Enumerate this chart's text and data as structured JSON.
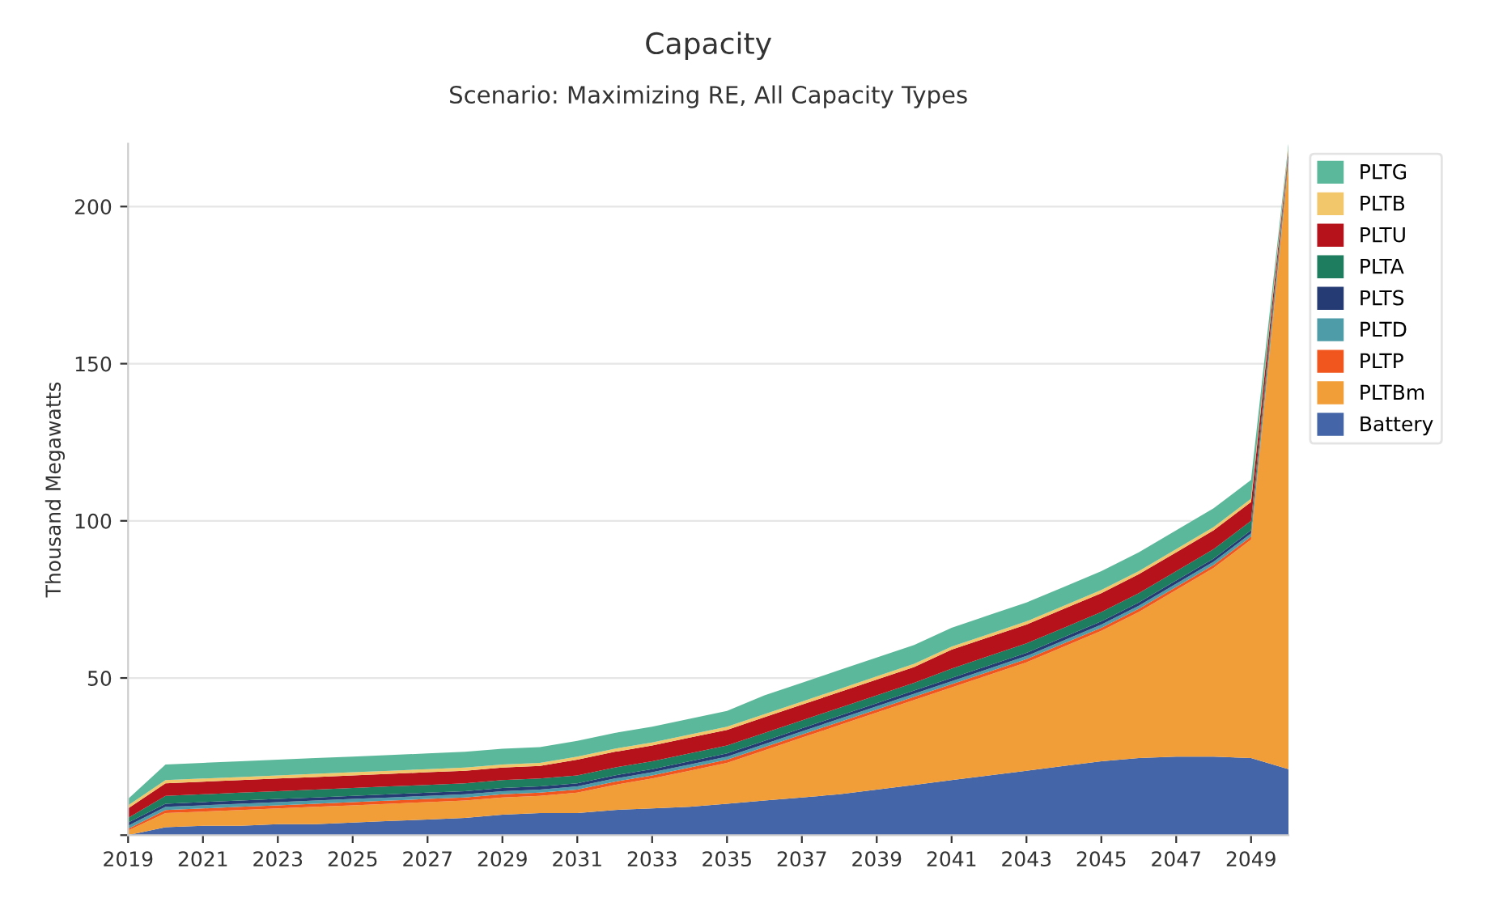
{
  "chart_data": {
    "type": "area",
    "stacked": true,
    "title": "Capacity",
    "subtitle": "Scenario: Maximizing RE, All Capacity Types",
    "ylabel": "Thousand Megawatts",
    "x": [
      2019,
      2020,
      2021,
      2022,
      2023,
      2024,
      2025,
      2026,
      2027,
      2028,
      2029,
      2030,
      2031,
      2032,
      2033,
      2034,
      2035,
      2036,
      2037,
      2038,
      2039,
      2040,
      2041,
      2042,
      2043,
      2044,
      2045,
      2046,
      2047,
      2048,
      2049,
      2050
    ],
    "xlim": [
      2019,
      2050
    ],
    "xticks": [
      2019,
      2021,
      2023,
      2025,
      2027,
      2029,
      2031,
      2033,
      2035,
      2037,
      2039,
      2041,
      2043,
      2045,
      2047,
      2049
    ],
    "ylim": [
      0,
      220
    ],
    "yticks": [
      {
        "value": 0,
        "label": null
      },
      50,
      100,
      150,
      200
    ],
    "grid": "y",
    "legend": "top right",
    "series": [
      {
        "name": "Battery",
        "color": "#4466a8",
        "values": [
          0,
          2.5,
          3,
          3,
          3.5,
          3.5,
          4,
          4.5,
          5,
          5.5,
          6.5,
          7,
          7,
          8,
          8.5,
          9,
          10,
          11,
          12,
          13,
          14.5,
          16,
          17.5,
          19,
          20.5,
          22,
          23.5,
          24.5,
          25,
          25,
          24.5,
          21
        ]
      },
      {
        "name": "PLTBm",
        "color": "#f29e38",
        "values": [
          1.5,
          4.5,
          4.5,
          5,
          5,
          5.5,
          5.5,
          5.5,
          5.5,
          5.5,
          5.5,
          5.5,
          6.5,
          8,
          9.5,
          11.5,
          13,
          16,
          19,
          22,
          24.5,
          27,
          29.5,
          32,
          34.5,
          38,
          41.5,
          46.5,
          53,
          60,
          69.5,
          193
        ]
      },
      {
        "name": "PLTP",
        "color": "#f0561d",
        "values": [
          0.5,
          1,
          1,
          1,
          1,
          1,
          1,
          1,
          1,
          1,
          1,
          1,
          1,
          1,
          1,
          1,
          1,
          1,
          1,
          1,
          1,
          1,
          1,
          1,
          1,
          1,
          1,
          1,
          1,
          1,
          1,
          0.5
        ]
      },
      {
        "name": "PLTD",
        "color": "#4e9ca8",
        "values": [
          1,
          1,
          1,
          1,
          1,
          1,
          1,
          1,
          1,
          1,
          1,
          1,
          1,
          1,
          1,
          1,
          1,
          1,
          1,
          1,
          1,
          1,
          1,
          1,
          1,
          1,
          1,
          1,
          1,
          1,
          1,
          1
        ]
      },
      {
        "name": "PLTS",
        "color": "#253b73",
        "values": [
          1,
          1,
          1,
          1,
          1,
          1,
          1,
          1,
          1,
          1,
          1,
          1,
          1,
          1,
          1,
          1,
          1,
          1,
          1,
          1,
          1,
          1,
          1,
          1,
          1,
          1,
          1,
          1,
          1,
          1,
          1,
          1
        ]
      },
      {
        "name": "PLTA",
        "color": "#1e7d5e",
        "values": [
          1.5,
          2.5,
          2.5,
          2.5,
          2.5,
          2.5,
          2.5,
          2.5,
          2.5,
          2.5,
          2.5,
          2.5,
          2.5,
          2.5,
          2.5,
          2.5,
          2.5,
          2.5,
          2.5,
          2.5,
          2.5,
          2.5,
          3,
          3,
          3,
          3,
          3,
          3,
          3,
          3,
          3,
          0.5
        ]
      },
      {
        "name": "PLTU",
        "color": "#b5121b",
        "values": [
          3,
          4,
          4,
          4,
          4,
          4,
          4,
          4,
          4,
          4,
          4,
          4,
          5,
          5,
          5,
          5,
          5,
          5,
          5,
          5,
          5,
          5,
          6,
          6,
          6,
          6,
          6,
          6,
          6,
          6,
          6,
          1
        ]
      },
      {
        "name": "PLTB",
        "color": "#f2c76b",
        "values": [
          1,
          1,
          1,
          1,
          1,
          1,
          1,
          1,
          1,
          1,
          1,
          1,
          1,
          1,
          1,
          1,
          1,
          1,
          1,
          1,
          1,
          1,
          1,
          1,
          1,
          1,
          1,
          1,
          1,
          1,
          1,
          1
        ]
      },
      {
        "name": "PLTG",
        "color": "#5cb89a",
        "values": [
          2,
          5,
          5,
          5,
          5,
          5,
          5,
          5,
          5,
          5,
          5,
          5,
          5,
          5,
          5,
          5,
          5,
          6,
          6,
          6,
          6,
          6,
          6,
          6,
          6,
          6,
          6,
          6,
          6,
          6,
          6,
          1
        ]
      }
    ]
  }
}
